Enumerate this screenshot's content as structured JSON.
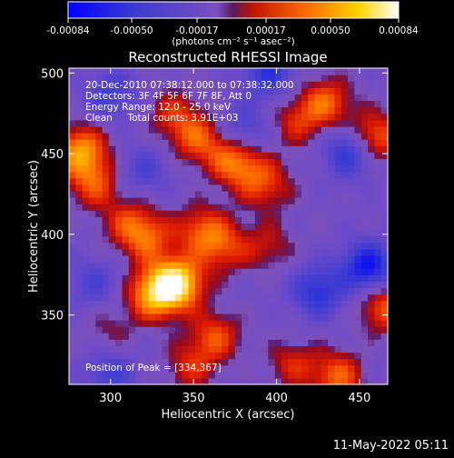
{
  "colorbar": {
    "tick_labels": [
      "-0.00084",
      "-0.00050",
      "-0.00017",
      "0.00017",
      "0.00050",
      "0.00084"
    ],
    "units_label": "(photons cm⁻² s⁻¹ asec⁻²)",
    "range": [
      -0.00084,
      0.00084
    ]
  },
  "chart_data": {
    "type": "heatmap",
    "title": "Reconstructed RHESSI Image",
    "xlabel": "Heliocentric X (arcsec)",
    "ylabel": "Heliocentric Y (arcsec)",
    "xlim": [
      275,
      467
    ],
    "ylim": [
      307,
      503
    ],
    "x_ticks": [
      300,
      350,
      400,
      450
    ],
    "y_ticks": [
      350,
      400,
      450,
      500
    ],
    "annotations": [
      "20-Dec-2010 07:38:12.000 to 07:38:32.000",
      "Detectors: 3F 4F 5F 6F 7F 8F, Att 0",
      "Energy Range: 12.0 - 25.0 keV",
      "Clean     Total counts: 3.91E+03"
    ],
    "peak_label": "Position of Peak = [334,367]",
    "peak_position": [
      334,
      367
    ],
    "blobs": [
      {
        "x": 340,
        "y": 370,
        "amp": 0.00084
      },
      {
        "x": 326,
        "y": 363,
        "amp": 0.0006
      },
      {
        "x": 322,
        "y": 398,
        "amp": 0.00042
      },
      {
        "x": 282,
        "y": 452,
        "amp": 0.0006
      },
      {
        "x": 290,
        "y": 432,
        "amp": 0.0004
      },
      {
        "x": 355,
        "y": 403,
        "amp": 0.0004
      },
      {
        "x": 368,
        "y": 392,
        "amp": 0.00035
      },
      {
        "x": 310,
        "y": 408,
        "amp": 0.0003
      },
      {
        "x": 352,
        "y": 460,
        "amp": 0.0004
      },
      {
        "x": 372,
        "y": 448,
        "amp": 0.00038
      },
      {
        "x": 338,
        "y": 475,
        "amp": 0.0003
      },
      {
        "x": 430,
        "y": 482,
        "amp": 0.00045
      },
      {
        "x": 458,
        "y": 460,
        "amp": 0.00055
      },
      {
        "x": 412,
        "y": 470,
        "amp": 0.0003
      },
      {
        "x": 395,
        "y": 430,
        "amp": 0.0003
      },
      {
        "x": 382,
        "y": 440,
        "amp": 0.00028
      },
      {
        "x": 465,
        "y": 355,
        "amp": 0.00045
      },
      {
        "x": 437,
        "y": 312,
        "amp": 0.00045
      },
      {
        "x": 410,
        "y": 320,
        "amp": 0.0003
      },
      {
        "x": 363,
        "y": 337,
        "amp": 0.0004
      },
      {
        "x": 348,
        "y": 318,
        "amp": 0.0003
      },
      {
        "x": 395,
        "y": 393,
        "amp": 0.00025
      },
      {
        "x": 300,
        "y": 340,
        "amp": 0.00018
      },
      {
        "x": 445,
        "y": 452,
        "amp": -0.0005
      },
      {
        "x": 455,
        "y": 380,
        "amp": -0.0006
      },
      {
        "x": 425,
        "y": 365,
        "amp": -0.00045
      },
      {
        "x": 300,
        "y": 315,
        "amp": -0.0003
      },
      {
        "x": 300,
        "y": 487,
        "amp": -0.0003
      },
      {
        "x": 395,
        "y": 500,
        "amp": -0.0004
      },
      {
        "x": 380,
        "y": 465,
        "amp": -0.0003
      },
      {
        "x": 320,
        "y": 440,
        "amp": -0.00025
      },
      {
        "x": 290,
        "y": 370,
        "amp": -0.00025
      }
    ]
  },
  "footer": {
    "timestamp": "11-May-2022 05:11"
  }
}
